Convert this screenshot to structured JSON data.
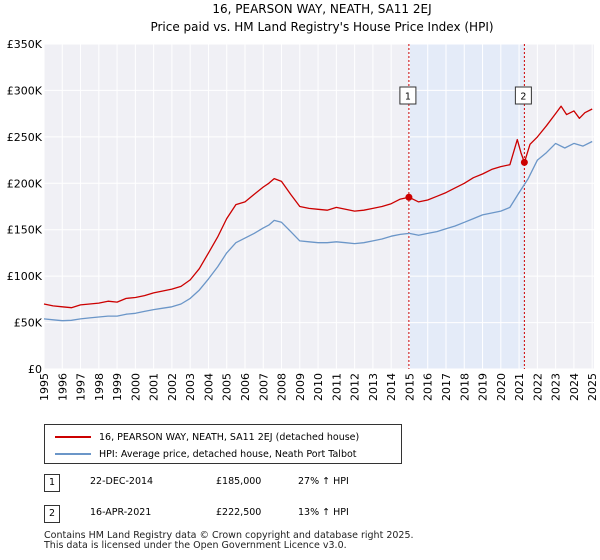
{
  "chart_data": {
    "type": "line",
    "title": "16, PEARSON WAY, NEATH, SA11 2EJ",
    "subtitle": "Price paid vs. HM Land Registry's House Price Index (HPI)",
    "xlim": [
      1995,
      2025.1
    ],
    "ylim": [
      0,
      350000
    ],
    "x_ticks": [
      1995,
      1996,
      1997,
      1998,
      1999,
      2000,
      2001,
      2002,
      2003,
      2004,
      2005,
      2006,
      2007,
      2008,
      2009,
      2010,
      2011,
      2012,
      2013,
      2014,
      2015,
      2016,
      2017,
      2018,
      2019,
      2020,
      2021,
      2022,
      2023,
      2024,
      2025
    ],
    "y_ticks": [
      0,
      50000,
      100000,
      150000,
      200000,
      250000,
      300000,
      350000
    ],
    "y_tick_labels": [
      "£0",
      "£50K",
      "£100K",
      "£150K",
      "£200K",
      "£250K",
      "£300K",
      "£350K"
    ],
    "grid": true,
    "shaded_region": [
      2014.97,
      2021.29
    ],
    "series": [
      {
        "name": "16, PEARSON WAY, NEATH, SA11 2EJ (detached house)",
        "color": "#cc0000",
        "x": [
          1995,
          1995.5,
          1996,
          1996.5,
          1997,
          1997.5,
          1998,
          1998.5,
          1999,
          1999.5,
          2000,
          2000.5,
          2001,
          2001.5,
          2002,
          2002.5,
          2003,
          2003.5,
          2004,
          2004.5,
          2005,
          2005.5,
          2006,
          2006.5,
          2007,
          2007.3,
          2007.6,
          2008,
          2008.5,
          2009,
          2009.5,
          2010,
          2010.5,
          2011,
          2011.5,
          2012,
          2012.5,
          2013,
          2013.5,
          2014,
          2014.5,
          2014.97,
          2015.5,
          2016,
          2016.5,
          2017,
          2017.5,
          2018,
          2018.5,
          2019,
          2019.5,
          2020,
          2020.5,
          2020.9,
          2021.1,
          2021.29,
          2021.6,
          2022,
          2022.5,
          2023,
          2023.3,
          2023.6,
          2024,
          2024.3,
          2024.6,
          2025
        ],
        "y": [
          70000,
          68000,
          67000,
          66000,
          69000,
          70000,
          71000,
          73000,
          72000,
          76000,
          77000,
          79000,
          82000,
          84000,
          86000,
          89000,
          96000,
          108000,
          125000,
          142000,
          162000,
          177000,
          180000,
          188000,
          196000,
          200000,
          205000,
          202000,
          188000,
          175000,
          173000,
          172000,
          171000,
          174000,
          172000,
          170000,
          171000,
          173000,
          175000,
          178000,
          183000,
          185000,
          180000,
          182000,
          186000,
          190000,
          195000,
          200000,
          206000,
          210000,
          215000,
          218000,
          220000,
          247000,
          233000,
          222500,
          242000,
          250000,
          262000,
          275000,
          283000,
          274000,
          278000,
          270000,
          276000,
          280000
        ]
      },
      {
        "name": "HPI: Average price, detached house, Neath Port Talbot",
        "color": "#6b96c8",
        "x": [
          1995,
          1995.5,
          1996,
          1996.5,
          1997,
          1997.5,
          1998,
          1998.5,
          1999,
          1999.5,
          2000,
          2000.5,
          2001,
          2001.5,
          2002,
          2002.5,
          2003,
          2003.5,
          2004,
          2004.5,
          2005,
          2005.5,
          2006,
          2006.5,
          2007,
          2007.3,
          2007.6,
          2008,
          2008.5,
          2009,
          2009.5,
          2010,
          2010.5,
          2011,
          2011.5,
          2012,
          2012.5,
          2013,
          2013.5,
          2014,
          2014.5,
          2015,
          2015.5,
          2016,
          2016.5,
          2017,
          2017.5,
          2018,
          2018.5,
          2019,
          2019.5,
          2020,
          2020.5,
          2021,
          2021.5,
          2022,
          2022.5,
          2023,
          2023.5,
          2024,
          2024.5,
          2025
        ],
        "y": [
          54000,
          53000,
          52000,
          52500,
          54000,
          55000,
          56000,
          57000,
          57000,
          59000,
          60000,
          62000,
          64000,
          65500,
          67000,
          70000,
          76000,
          85000,
          97000,
          110000,
          125000,
          136000,
          141000,
          146000,
          152000,
          155000,
          160000,
          158000,
          148000,
          138000,
          137000,
          136000,
          136000,
          137000,
          136000,
          135000,
          136000,
          138000,
          140000,
          143000,
          145000,
          146000,
          144000,
          146000,
          148000,
          151000,
          154000,
          158000,
          162000,
          166000,
          168000,
          170000,
          174000,
          190000,
          205000,
          225000,
          233000,
          243000,
          238000,
          243000,
          240000,
          245000
        ]
      }
    ],
    "sales": [
      {
        "label": "1",
        "x": 2014.97,
        "y": 185000
      },
      {
        "label": "2",
        "x": 2021.29,
        "y": 222500
      }
    ]
  },
  "legend": {
    "items": [
      {
        "label": "16, PEARSON WAY, NEATH, SA11 2EJ (detached house)",
        "color": "#cc0000"
      },
      {
        "label": "HPI: Average price, detached house, Neath Port Talbot",
        "color": "#6b96c8"
      }
    ]
  },
  "sales_table": [
    {
      "num": "1",
      "date": "22-DEC-2014",
      "price": "£185,000",
      "hpi": "27% ↑ HPI"
    },
    {
      "num": "2",
      "date": "16-APR-2021",
      "price": "£222,500",
      "hpi": "13% ↑ HPI"
    }
  ],
  "footer": {
    "line1": "Contains HM Land Registry data © Crown copyright and database right 2025.",
    "line2": "This data is licensed under the Open Government Licence v3.0."
  }
}
